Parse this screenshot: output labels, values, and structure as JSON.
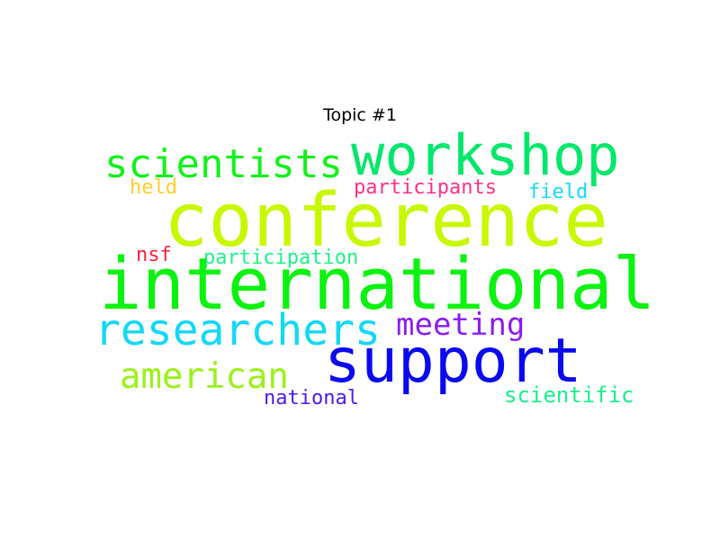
{
  "title": "Topic #1",
  "words": [
    {
      "key": "workshop",
      "text": "workshop",
      "color": "#00e86a"
    },
    {
      "key": "scientists",
      "text": "scientists",
      "color": "#12f21a"
    },
    {
      "key": "conference",
      "text": "conference",
      "color": "#c8f800"
    },
    {
      "key": "participants",
      "text": "participants",
      "color": "#ff2f8a"
    },
    {
      "key": "held",
      "text": "held",
      "color": "#ffcf2a"
    },
    {
      "key": "field",
      "text": "field",
      "color": "#18d8ff"
    },
    {
      "key": "nsf",
      "text": "nsf",
      "color": "#ff2040"
    },
    {
      "key": "participation",
      "text": "participation",
      "color": "#20f08a"
    },
    {
      "key": "international",
      "text": "international",
      "color": "#0cf210"
    },
    {
      "key": "researchers",
      "text": "researchers",
      "color": "#13d8f6"
    },
    {
      "key": "meeting",
      "text": "meeting",
      "color": "#8a1cf2"
    },
    {
      "key": "support",
      "text": "support",
      "color": "#0a08f0"
    },
    {
      "key": "american",
      "text": "american",
      "color": "#9af21a"
    },
    {
      "key": "national",
      "text": "national",
      "color": "#4c1cf0"
    },
    {
      "key": "scientific",
      "text": "scientific",
      "color": "#1af08a"
    }
  ]
}
